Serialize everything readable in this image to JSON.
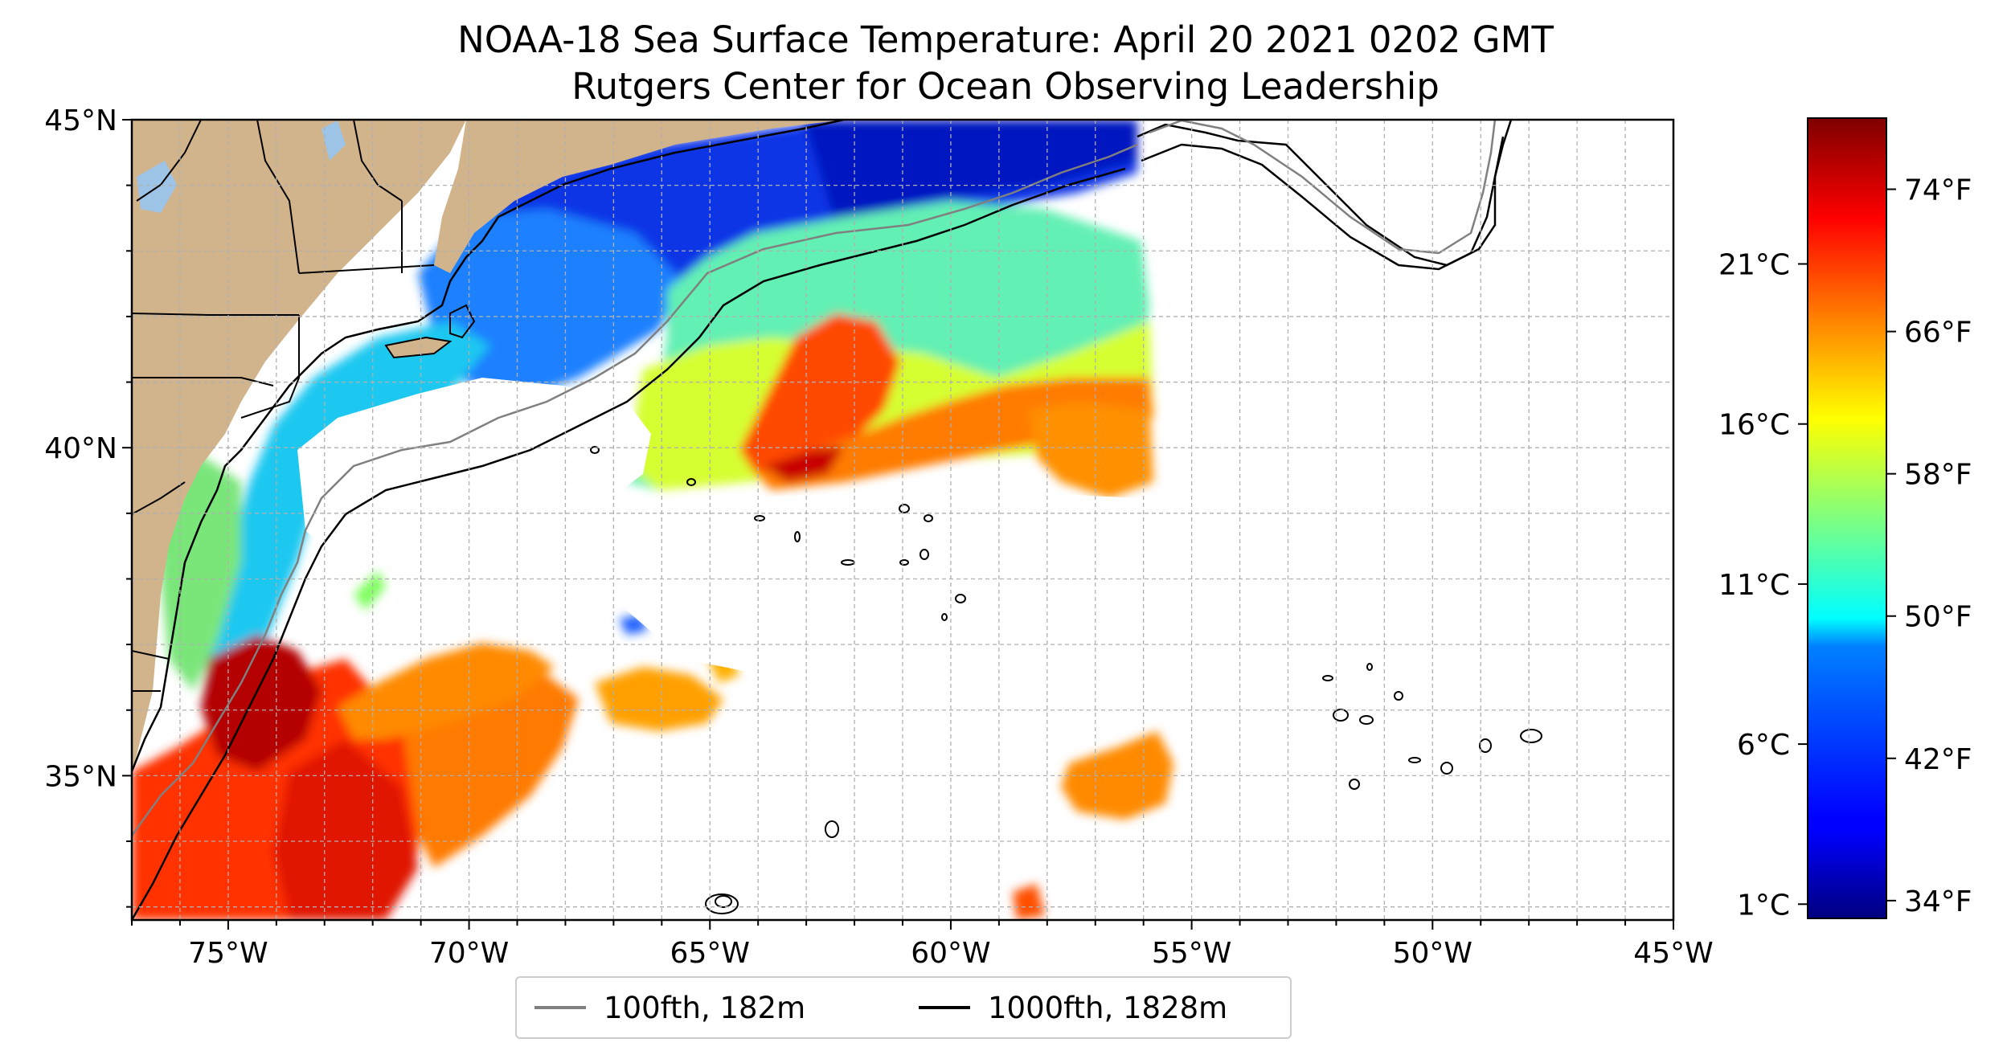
{
  "title": "NOAA-18 Sea Surface Temperature: April 20 2021 0202 GMT",
  "subtitle": "Rutgers Center for Ocean Observing Leadership",
  "map": {
    "lon_range": [
      -77,
      -45
    ],
    "lat_range": [
      32.8,
      45
    ],
    "lon_ticks": [
      {
        "value": -75,
        "label": "75°W"
      },
      {
        "value": -70,
        "label": "70°W"
      },
      {
        "value": -65,
        "label": "65°W"
      },
      {
        "value": -60,
        "label": "60°W"
      },
      {
        "value": -55,
        "label": "55°W"
      },
      {
        "value": -50,
        "label": "50°W"
      },
      {
        "value": -45,
        "label": "45°W"
      }
    ],
    "lat_ticks": [
      {
        "value": 45,
        "label": "45°N"
      },
      {
        "value": 40,
        "label": "40°N"
      },
      {
        "value": 35,
        "label": "35°N"
      }
    ],
    "gridlines": true,
    "land_color": "#d2b48c",
    "lake_color": "#9dc3e6"
  },
  "colorbar": {
    "colormap": "jet",
    "fahrenheit_range": [
      33,
      78
    ],
    "celsius_ticks": [
      {
        "value": 1,
        "label": "1°C"
      },
      {
        "value": 6,
        "label": "6°C"
      },
      {
        "value": 11,
        "label": "11°C"
      },
      {
        "value": 16,
        "label": "16°C"
      },
      {
        "value": 21,
        "label": "21°C"
      }
    ],
    "fahrenheit_ticks": [
      {
        "value": 34,
        "label": "34°F"
      },
      {
        "value": 42,
        "label": "42°F"
      },
      {
        "value": 50,
        "label": "50°F"
      },
      {
        "value": 58,
        "label": "58°F"
      },
      {
        "value": 66,
        "label": "66°F"
      },
      {
        "value": 74,
        "label": "74°F"
      }
    ]
  },
  "legend": {
    "items": [
      {
        "label": "100fth, 182m",
        "color": "#808080"
      },
      {
        "label": "1000fth, 1828m",
        "color": "#000000"
      }
    ]
  }
}
